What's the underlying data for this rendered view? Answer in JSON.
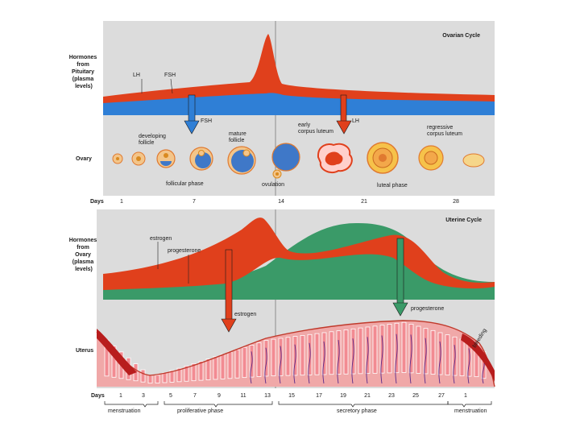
{
  "ovarian": {
    "title": "Ovarian Cycle",
    "pituitary_label": [
      "Hormones",
      "from",
      "Pituitary",
      "(plasma",
      "levels)"
    ],
    "lh_label": "LH",
    "fsh_label": "FSH",
    "fsh_arrow_label": "FSH",
    "lh_arrow_label": "LH",
    "ovary_label": "Ovary",
    "developing_follicle": [
      "developing",
      "follicle"
    ],
    "mature_follicle": [
      "mature",
      "follicle"
    ],
    "early_corpus_luteum": [
      "early",
      "corpus luteum"
    ],
    "regressive_corpus_luteum": [
      "regressive",
      "corpus luteum"
    ],
    "follicular_phase": "follicular phase",
    "ovulation": "ovulation",
    "luteal_phase": "luteal phase",
    "days_label": "Days",
    "days": [
      "1",
      "7",
      "14",
      "21",
      "28"
    ]
  },
  "uterine": {
    "title": "Uterine Cycle",
    "ovary_hormone_label": [
      "Hormones",
      "from",
      "Ovary",
      "(plasma",
      "levels)"
    ],
    "estrogen_label": "estrogen",
    "progesterone_label": "progesterone",
    "estrogen_arrow_label": "estrogen",
    "progesterone_arrow_label": "progesterone",
    "uterus_label": "Uterus",
    "bleeding_label": "bleeding",
    "days_label": "Days",
    "days": [
      "1",
      "3",
      "5",
      "7",
      "9",
      "11",
      "13",
      "15",
      "17",
      "19",
      "21",
      "23",
      "25",
      "27",
      "1"
    ],
    "menstruation_1": "menstruation",
    "proliferative_phase": "proliferative phase",
    "secretory_phase": "secretory phase",
    "menstruation_2": "menstruation"
  },
  "colors": {
    "panel": "#dcdcdc",
    "hormone_red": "#e0401c",
    "hormone_blue": "#2f7fd6",
    "hormone_green": "#3a9a68",
    "tissue_pink": "#f28b92",
    "vessel": "#5a2a8a"
  }
}
